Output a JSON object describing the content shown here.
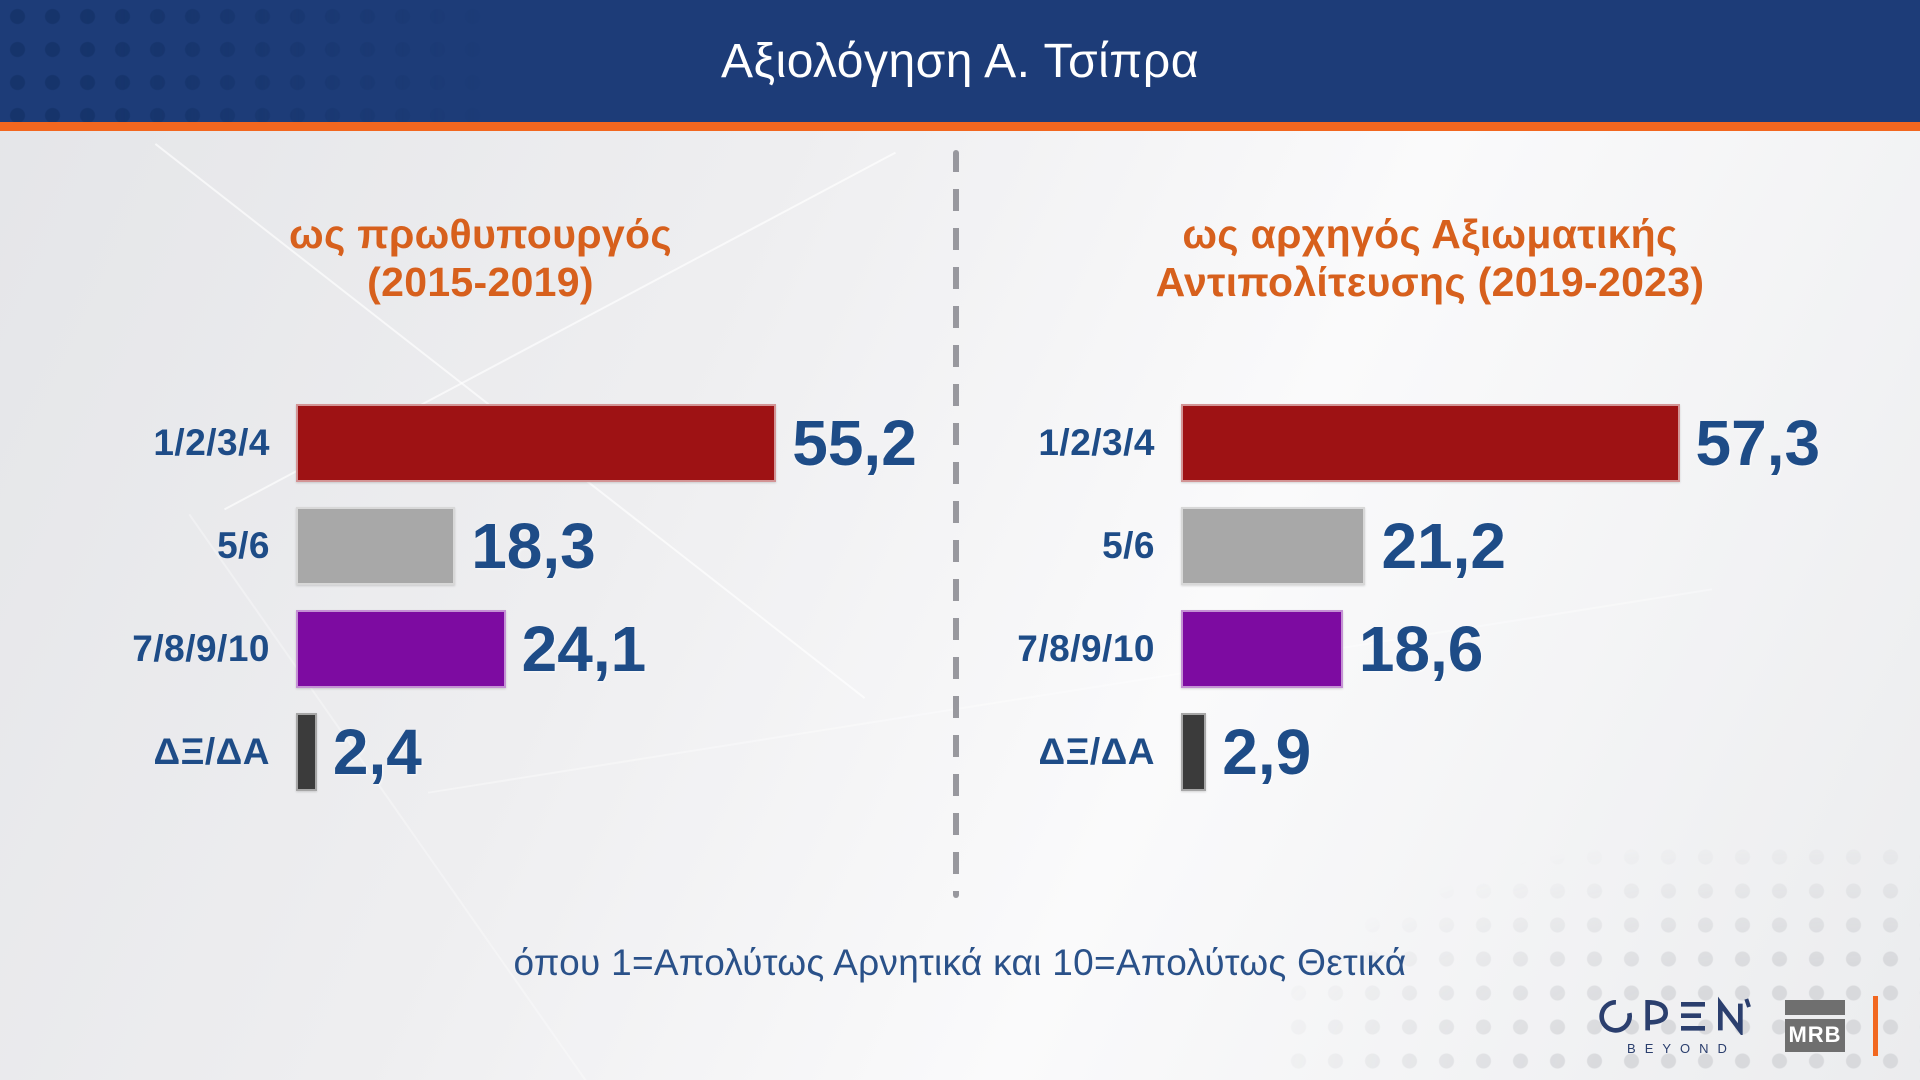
{
  "header": {
    "title": "Αξιολόγηση Α. Τσίπρα"
  },
  "chart_data": {
    "type": "bar",
    "orientation": "horizontal",
    "categories": [
      "1/2/3/4",
      "5/6",
      "7/8/9/10",
      "ΔΞ/ΔΑ"
    ],
    "series": [
      {
        "name": "ως πρωθυπουργός (2015-2019)",
        "title_lines": [
          "ως πρωθυπουργός",
          "(2015-2019)"
        ],
        "values": [
          55.2,
          18.3,
          24.1,
          2.4
        ],
        "labels": [
          "55,2",
          "18,3",
          "24,1",
          "2,4"
        ]
      },
      {
        "name": "ως αρχηγός Αξιωματικής Αντιπολίτευσης (2019-2023)",
        "title_lines": [
          "ως αρχηγός Αξιωματικής",
          "Αντιπολίτευσης (2019-2023)"
        ],
        "values": [
          57.3,
          21.2,
          18.6,
          2.9
        ],
        "labels": [
          "57,3",
          "21,2",
          "18,6",
          "2,9"
        ]
      }
    ],
    "bar_colors": [
      "#9e1214",
      "#a8a8a8",
      "#7d0ba1",
      "#3b3b3b"
    ],
    "xlim": [
      0,
      60
    ],
    "value_format": "comma-decimal",
    "note": "όπου 1=Απολύτως Αρνητικά και 10=Απολύτως Θετικά",
    "legend_position": "none",
    "grid": false
  },
  "footer": {
    "note": "όπου 1=Απολύτως Αρνητικά και 10=Απολύτως Θετικά"
  },
  "branding": {
    "open": "OPEN",
    "open_sub": "BEYOND",
    "mrb": "MRB"
  },
  "colors": {
    "header_bg": "#1d3c78",
    "accent_orange": "#f2671f",
    "heading_orange": "#d7601d",
    "text_blue": "#1e4c87",
    "divider_gray": "#98989e",
    "background_gray": "#ebecee"
  }
}
